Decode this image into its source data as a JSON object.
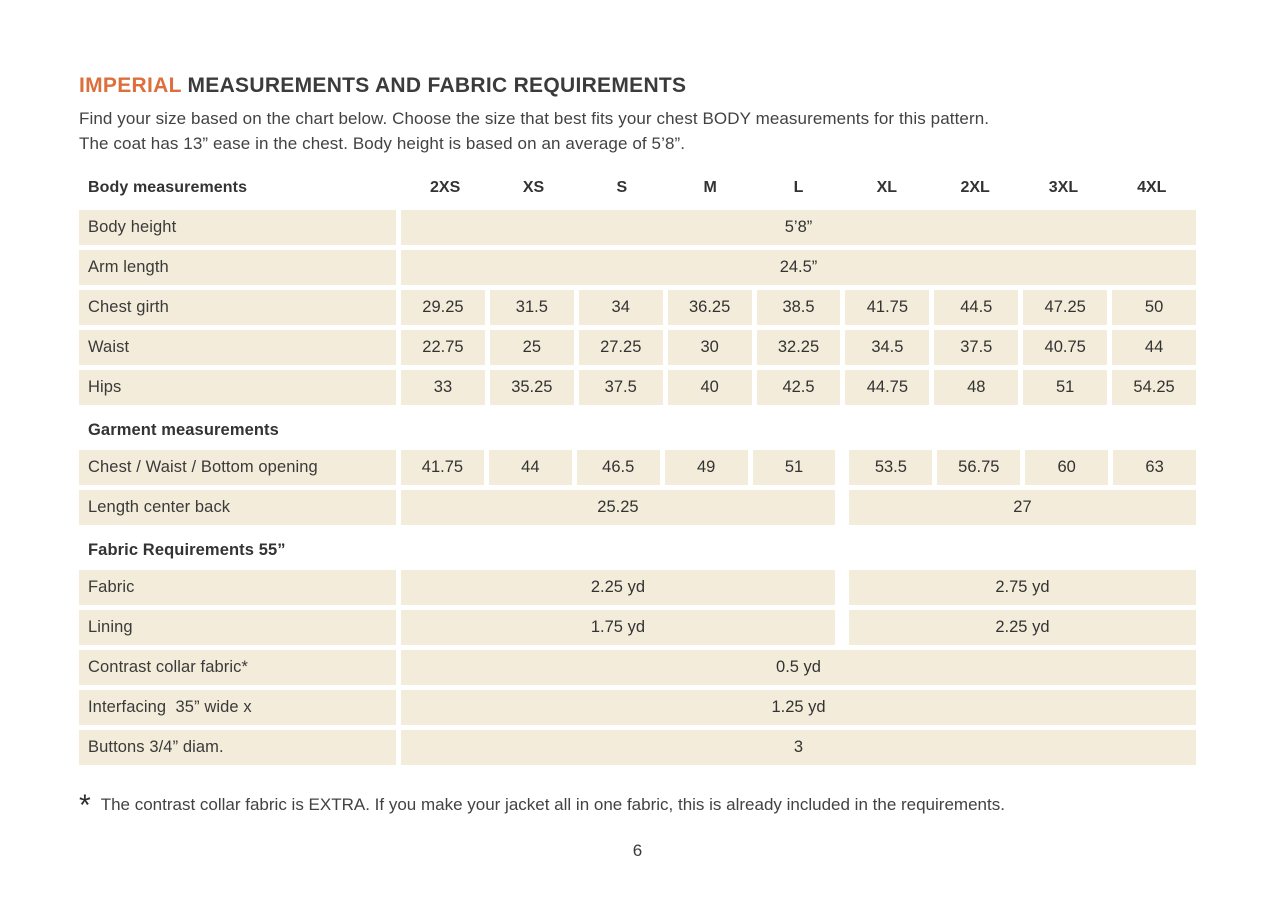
{
  "page": {
    "title": {
      "highlight": "IMPERIAL",
      "rest": " MEASUREMENTS AND FABRIC REQUIREMENTS"
    },
    "intro_line1": "Find your size based on the chart below. Choose the size that best fits your chest BODY measurements for this pattern.",
    "intro_line2": "The coat has 13” ease in the chest. Body height is based on an average of 5’8”.",
    "footnote": {
      "marker": "*",
      "text": "The contrast collar fabric is EXTRA. If you make your jacket all in one fabric, this is already included in the requirements."
    },
    "page_number": "6"
  },
  "colors": {
    "accent_orange": "#DD6F3C",
    "row_beige": "#F3ECDA",
    "text_dark": "#3A3A3A",
    "background": "#FFFFFF"
  },
  "table": {
    "header_label": "Body measurements",
    "size_columns": [
      "2XS",
      "XS",
      "S",
      "M",
      "L",
      "XL",
      "2XL",
      "3XL",
      "4XL"
    ],
    "sections": [
      {
        "heading": null,
        "rows": [
          {
            "label": "Body height",
            "cells": [
              {
                "span": 9,
                "value": "5’8”"
              }
            ]
          },
          {
            "label": "Arm length",
            "cells": [
              {
                "span": 9,
                "value": "24.5”"
              }
            ]
          },
          {
            "label": "Chest girth",
            "cells": [
              {
                "span": 1,
                "value": "29.25"
              },
              {
                "span": 1,
                "value": "31.5"
              },
              {
                "span": 1,
                "value": "34"
              },
              {
                "span": 1,
                "value": "36.25"
              },
              {
                "span": 1,
                "value": "38.5"
              },
              {
                "span": 1,
                "value": "41.75"
              },
              {
                "span": 1,
                "value": "44.5"
              },
              {
                "span": 1,
                "value": "47.25"
              },
              {
                "span": 1,
                "value": "50"
              }
            ]
          },
          {
            "label": "Waist",
            "cells": [
              {
                "span": 1,
                "value": "22.75"
              },
              {
                "span": 1,
                "value": "25"
              },
              {
                "span": 1,
                "value": "27.25"
              },
              {
                "span": 1,
                "value": "30"
              },
              {
                "span": 1,
                "value": "32.25"
              },
              {
                "span": 1,
                "value": "34.5"
              },
              {
                "span": 1,
                "value": "37.5"
              },
              {
                "span": 1,
                "value": "40.75"
              },
              {
                "span": 1,
                "value": "44"
              }
            ]
          },
          {
            "label": "Hips",
            "cells": [
              {
                "span": 1,
                "value": "33"
              },
              {
                "span": 1,
                "value": "35.25"
              },
              {
                "span": 1,
                "value": "37.5"
              },
              {
                "span": 1,
                "value": "40"
              },
              {
                "span": 1,
                "value": "42.5"
              },
              {
                "span": 1,
                "value": "44.75"
              },
              {
                "span": 1,
                "value": "48"
              },
              {
                "span": 1,
                "value": "51"
              },
              {
                "span": 1,
                "value": "54.25"
              }
            ]
          }
        ]
      },
      {
        "heading": "Garment measurements",
        "rows": [
          {
            "label": "Chest / Waist / Bottom opening",
            "cells": [
              {
                "span": 1,
                "value": "41.75"
              },
              {
                "span": 1,
                "value": "44"
              },
              {
                "span": 1,
                "value": "46.5"
              },
              {
                "span": 1,
                "value": "49"
              },
              {
                "span": 1,
                "value": "51"
              },
              {
                "span": 1,
                "value": "53.5",
                "wide_gap_before": true
              },
              {
                "span": 1,
                "value": "56.75"
              },
              {
                "span": 1,
                "value": "60"
              },
              {
                "span": 1,
                "value": "63"
              }
            ]
          },
          {
            "label": "Length center back",
            "cells": [
              {
                "span": 5,
                "value": "25.25"
              },
              {
                "span": 4,
                "value": "27",
                "wide_gap_before": true
              }
            ]
          }
        ]
      },
      {
        "heading": "Fabric Requirements 55”",
        "rows": [
          {
            "label": "Fabric",
            "cells": [
              {
                "span": 5,
                "value": "2.25 yd"
              },
              {
                "span": 4,
                "value": "2.75 yd",
                "wide_gap_before": true
              }
            ]
          },
          {
            "label": "Lining",
            "cells": [
              {
                "span": 5,
                "value": "1.75 yd"
              },
              {
                "span": 4,
                "value": "2.25 yd",
                "wide_gap_before": true
              }
            ]
          },
          {
            "label": "Contrast collar fabric*",
            "cells": [
              {
                "span": 9,
                "value": "0.5 yd"
              }
            ]
          },
          {
            "label": "Interfacing  35” wide x",
            "cells": [
              {
                "span": 9,
                "value": "1.25 yd"
              }
            ]
          },
          {
            "label": "Buttons 3/4” diam.",
            "cells": [
              {
                "span": 9,
                "value": "3"
              }
            ]
          }
        ]
      }
    ]
  }
}
